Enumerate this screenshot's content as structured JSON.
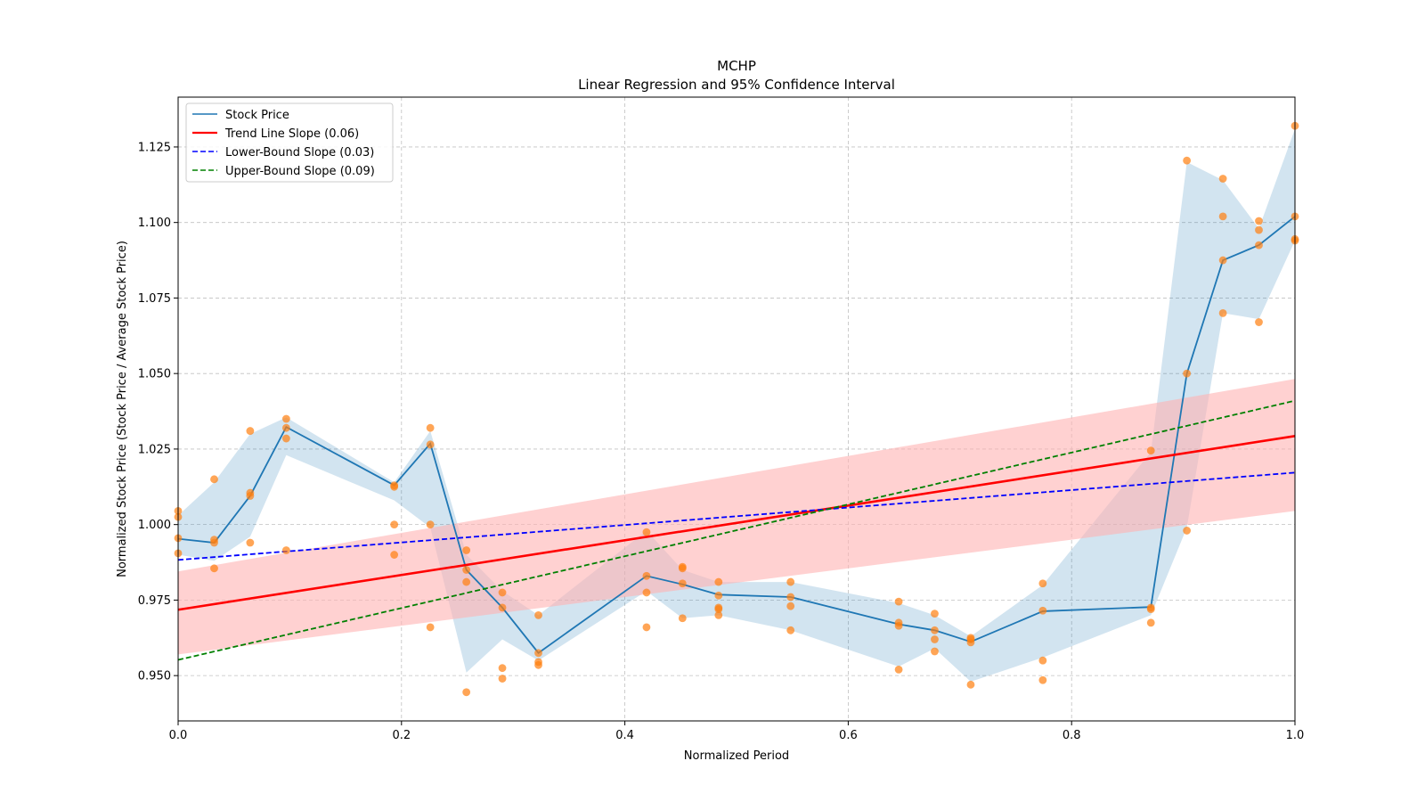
{
  "chart_data": {
    "type": "line",
    "title": "MCHP",
    "subtitle": "Linear Regression and 95% Confidence Interval",
    "xlabel": "Normalized Period",
    "ylabel": "Normalized Stock Price (Stock Price / Average Stock Price)",
    "xlim": [
      0.0,
      1.0
    ],
    "ylim": [
      0.935,
      1.1415
    ],
    "xticks": [
      0.0,
      0.2,
      0.4,
      0.6,
      0.8,
      1.0
    ],
    "xtick_labels": [
      "0.0",
      "0.2",
      "0.4",
      "0.6",
      "0.8",
      "1.0"
    ],
    "yticks": [
      0.95,
      0.975,
      1.0,
      1.025,
      1.05,
      1.075,
      1.1,
      1.125
    ],
    "ytick_labels": [
      "0.950",
      "0.975",
      "1.000",
      "1.025",
      "1.050",
      "1.075",
      "1.100",
      "1.125"
    ],
    "grid": true,
    "legend_position": "top-left",
    "legend": [
      {
        "label": "Stock Price",
        "color": "#1f77b4",
        "style": "solid"
      },
      {
        "label": "Trend Line Slope (0.06)",
        "color": "#ff0000",
        "style": "solid"
      },
      {
        "label": "Lower-Bound Slope (0.03)",
        "color": "#0000ff",
        "style": "dashed"
      },
      {
        "label": "Upper-Bound Slope (0.09)",
        "color": "#008000",
        "style": "dashed"
      }
    ],
    "colors": {
      "stock_line": "#1f77b4",
      "stock_band": "#1f77b4",
      "scatter": "#ff7f0e",
      "trend": "#ff0000",
      "trend_band": "#ffb3b3",
      "lower": "#0000ff",
      "upper": "#008000",
      "grid": "#b0b0b0"
    },
    "stock_price": {
      "x": [
        0.0,
        0.0323,
        0.0645,
        0.0968,
        0.1935,
        0.2258,
        0.2581,
        0.2903,
        0.3226,
        0.4194,
        0.4516,
        0.4839,
        0.5484,
        0.6452,
        0.6774,
        0.7097,
        0.7742,
        0.871,
        0.9032,
        0.9355,
        0.9677,
        1.0
      ],
      "y": [
        0.9953,
        0.994,
        1.0095,
        1.0323,
        1.013,
        1.0268,
        0.985,
        0.9725,
        0.9575,
        0.983,
        0.9802,
        0.9768,
        0.976,
        0.967,
        0.965,
        0.9612,
        0.9713,
        0.9727,
        1.05,
        1.0875,
        1.0925,
        1.102
      ],
      "band_low": [
        0.99,
        0.988,
        0.996,
        1.023,
        1.008,
        0.999,
        0.951,
        0.962,
        0.955,
        0.978,
        0.969,
        0.97,
        0.965,
        0.953,
        0.959,
        0.948,
        0.956,
        0.97,
        0.999,
        1.07,
        1.068,
        1.094
      ],
      "band_high": [
        1.003,
        1.014,
        1.03,
        1.0355,
        1.014,
        1.031,
        0.99,
        0.978,
        0.97,
        0.998,
        0.985,
        0.981,
        0.981,
        0.974,
        0.97,
        0.963,
        0.98,
        1.024,
        1.12,
        1.114,
        1.098,
        1.131
      ]
    },
    "scatter_points": {
      "x": [
        0.0,
        0.0,
        0.0,
        0.0,
        0.0323,
        0.0323,
        0.0323,
        0.0323,
        0.0645,
        0.0645,
        0.0645,
        0.0645,
        0.0968,
        0.0968,
        0.0968,
        0.0968,
        0.1935,
        0.1935,
        0.1935,
        0.1935,
        0.2258,
        0.2258,
        0.2258,
        0.2258,
        0.2581,
        0.2581,
        0.2581,
        0.2581,
        0.2903,
        0.2903,
        0.2903,
        0.2903,
        0.3226,
        0.3226,
        0.3226,
        0.3226,
        0.4194,
        0.4194,
        0.4194,
        0.4194,
        0.4516,
        0.4516,
        0.4516,
        0.4516,
        0.4839,
        0.4839,
        0.4839,
        0.4839,
        0.4839,
        0.5484,
        0.5484,
        0.5484,
        0.5484,
        0.6452,
        0.6452,
        0.6452,
        0.6452,
        0.6774,
        0.6774,
        0.6774,
        0.6774,
        0.7097,
        0.7097,
        0.7097,
        0.7097,
        0.7742,
        0.7742,
        0.7742,
        0.7742,
        0.871,
        0.871,
        0.871,
        0.871,
        0.9032,
        0.9032,
        0.9032,
        0.9355,
        0.9355,
        0.9355,
        0.9355,
        0.9677,
        0.9677,
        0.9677,
        0.9677,
        1.0,
        1.0,
        1.0,
        1.0
      ],
      "y": [
        1.0045,
        1.0025,
        0.9955,
        0.9905,
        1.015,
        0.995,
        0.994,
        0.9855,
        1.031,
        1.0105,
        1.0095,
        0.994,
        1.035,
        1.032,
        1.0285,
        0.9915,
        1.013,
        1.0125,
        1.0,
        0.99,
        1.032,
        1.0265,
        1.0,
        0.966,
        0.9915,
        0.985,
        0.981,
        0.9445,
        0.9775,
        0.9725,
        0.9525,
        0.949,
        0.97,
        0.9575,
        0.9545,
        0.9535,
        0.9975,
        0.983,
        0.9775,
        0.966,
        0.986,
        0.9855,
        0.9805,
        0.969,
        0.981,
        0.9765,
        0.9725,
        0.972,
        0.97,
        0.981,
        0.976,
        0.973,
        0.965,
        0.9745,
        0.9675,
        0.9665,
        0.952,
        0.9705,
        0.965,
        0.962,
        0.958,
        0.9625,
        0.962,
        0.961,
        0.947,
        0.9805,
        0.9715,
        0.955,
        0.9485,
        1.0245,
        0.9725,
        0.972,
        0.9675,
        1.1205,
        1.05,
        0.998,
        1.1145,
        1.102,
        1.0875,
        1.07,
        1.1005,
        1.0975,
        1.0925,
        1.067,
        1.132,
        1.102,
        1.0945,
        1.094
      ]
    },
    "trend_line": {
      "x": [
        0.0,
        1.0
      ],
      "y": [
        0.9718,
        1.0293
      ]
    },
    "trend_band": {
      "x": [
        0.0,
        1.0
      ],
      "low": [
        0.957,
        1.0045
      ],
      "high": [
        0.9845,
        1.0482
      ]
    },
    "lower_bound_line": {
      "x": [
        0.0,
        1.0
      ],
      "y": [
        0.9883,
        1.0172
      ]
    },
    "upper_bound_line": {
      "x": [
        0.0,
        1.0
      ],
      "y": [
        0.9552,
        1.041
      ]
    }
  }
}
